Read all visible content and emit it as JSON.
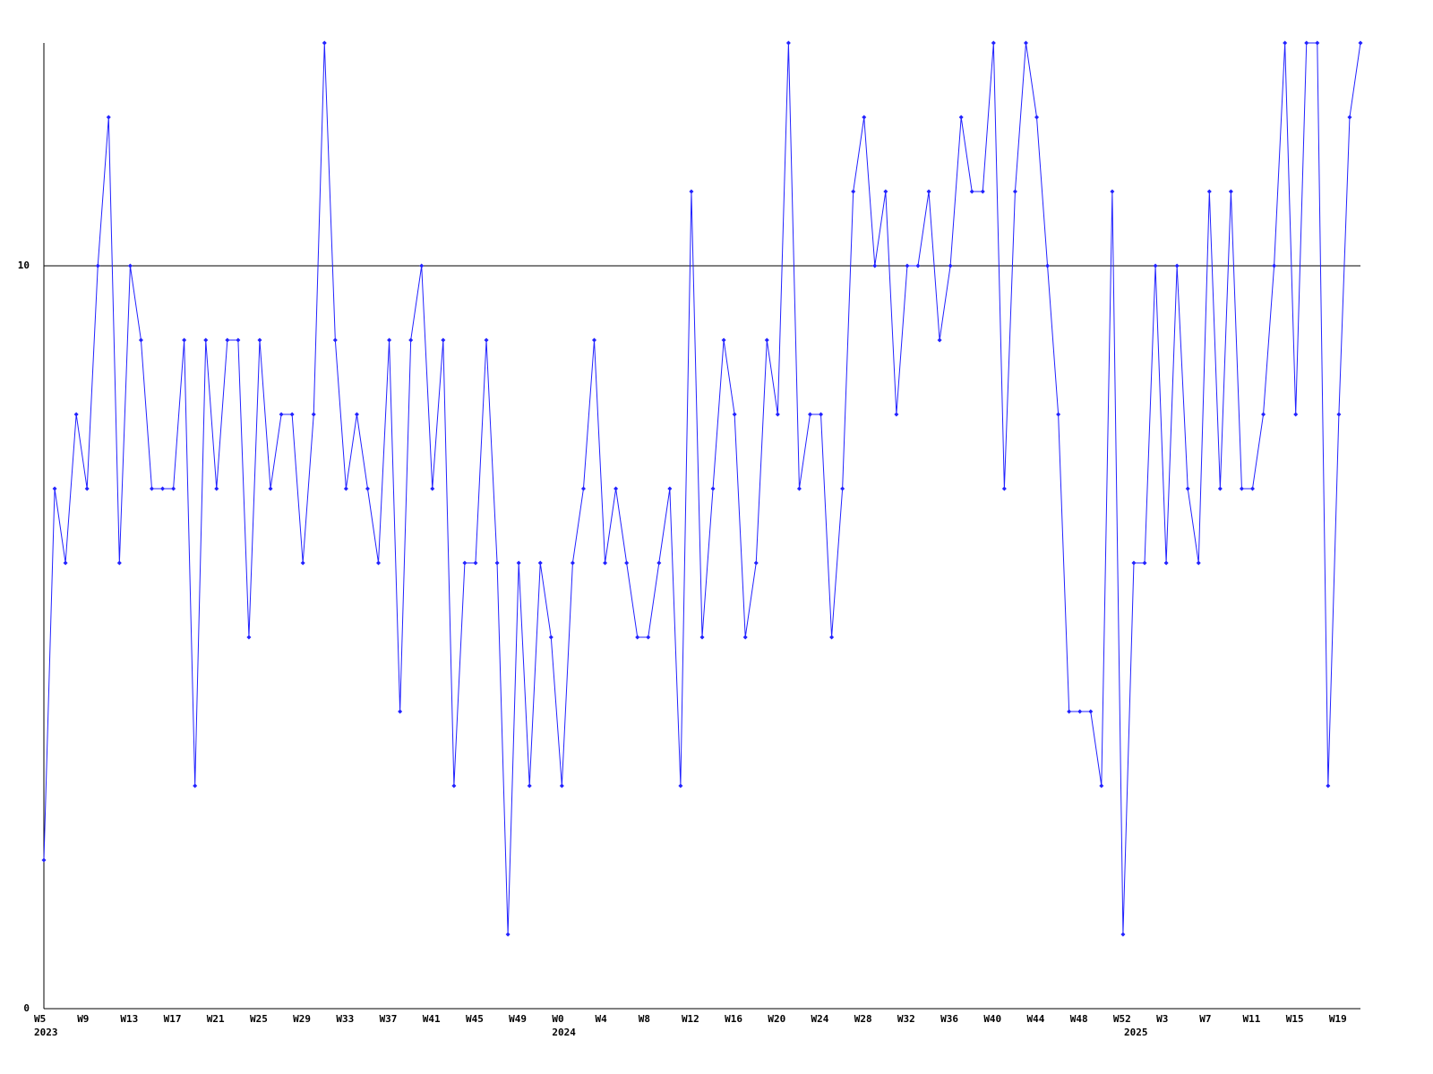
{
  "chart_data": {
    "type": "line",
    "categories": [
      "W5",
      null,
      null,
      null,
      "W9",
      null,
      null,
      null,
      "W13",
      null,
      null,
      null,
      "W17",
      null,
      null,
      null,
      "W21",
      null,
      null,
      null,
      "W25",
      null,
      null,
      null,
      "W29",
      null,
      null,
      null,
      "W33",
      null,
      null,
      null,
      "W37",
      null,
      null,
      null,
      "W41",
      null,
      null,
      null,
      "W45",
      null,
      null,
      null,
      "W49",
      null,
      null,
      null,
      "W0",
      null,
      null,
      null,
      "W4",
      null,
      null,
      null,
      "W8",
      null,
      null,
      null,
      "W12",
      null,
      null,
      null,
      "W16",
      null,
      null,
      null,
      "W20",
      null,
      null,
      null,
      "W24",
      null,
      null,
      null,
      "W28",
      null,
      null,
      null,
      "W32",
      null,
      null,
      null,
      "W36",
      null,
      null,
      null,
      "W40",
      null,
      null,
      null,
      "W44",
      null,
      null,
      null,
      "W48",
      null,
      null,
      null,
      "W52",
      null,
      null,
      null,
      "W3",
      null,
      null,
      null,
      "W7",
      null,
      null,
      null,
      "W11",
      null,
      null,
      null,
      "W15",
      null,
      null,
      null,
      "W19",
      null,
      null
    ],
    "years": [
      "2023",
      null,
      null,
      null,
      null,
      null,
      null,
      null,
      null,
      null,
      null,
      null,
      null,
      null,
      null,
      null,
      null,
      null,
      null,
      null,
      null,
      null,
      null,
      null,
      null,
      null,
      null,
      null,
      null,
      null,
      null,
      null,
      null,
      null,
      null,
      null,
      null,
      null,
      null,
      null,
      null,
      null,
      null,
      null,
      null,
      null,
      null,
      null,
      "2024",
      null,
      null,
      null,
      null,
      null,
      null,
      null,
      null,
      null,
      null,
      null,
      null,
      null,
      null,
      null,
      null,
      null,
      null,
      null,
      null,
      null,
      null,
      null,
      null,
      null,
      null,
      null,
      null,
      null,
      null,
      null,
      null,
      null,
      null,
      null,
      null,
      null,
      null,
      null,
      null,
      null,
      null,
      null,
      null,
      null,
      null,
      null,
      null,
      null,
      null,
      null,
      null,
      "2025",
      null,
      null,
      null,
      null,
      null,
      null,
      null,
      null,
      null,
      null,
      null,
      null,
      null,
      null,
      null,
      null,
      null,
      null,
      null,
      null,
      null
    ],
    "series": [
      {
        "color": "#2222ff",
        "values": [
          2,
          7,
          6,
          8,
          7,
          10,
          12,
          6,
          10,
          9,
          7,
          7,
          7,
          9,
          3,
          9,
          7,
          9,
          9,
          5,
          9,
          7,
          8,
          8,
          6,
          8,
          13,
          9,
          7,
          8,
          7,
          6,
          9,
          4,
          9,
          10,
          7,
          9,
          3,
          6,
          6,
          9,
          6,
          1,
          6,
          3,
          6,
          5,
          3,
          6,
          7,
          9,
          6,
          7,
          6,
          5,
          5,
          6,
          7,
          3,
          11,
          5,
          7,
          9,
          8,
          5,
          6,
          9,
          8,
          13,
          7,
          8,
          8,
          5,
          7,
          11,
          12,
          10,
          11,
          8,
          10,
          10,
          11,
          9,
          10,
          12,
          11,
          11,
          13,
          7,
          11,
          13,
          12,
          10,
          8,
          4,
          4,
          4,
          3,
          11,
          1,
          6,
          6,
          10,
          6,
          10,
          7,
          6,
          11,
          7,
          11,
          7,
          7,
          8,
          10,
          13,
          8,
          13,
          13,
          3,
          8,
          12,
          13
        ]
      }
    ],
    "ylim": [
      0,
      13
    ],
    "yticks": [
      0,
      10
    ],
    "grid": true,
    "markers": true
  }
}
